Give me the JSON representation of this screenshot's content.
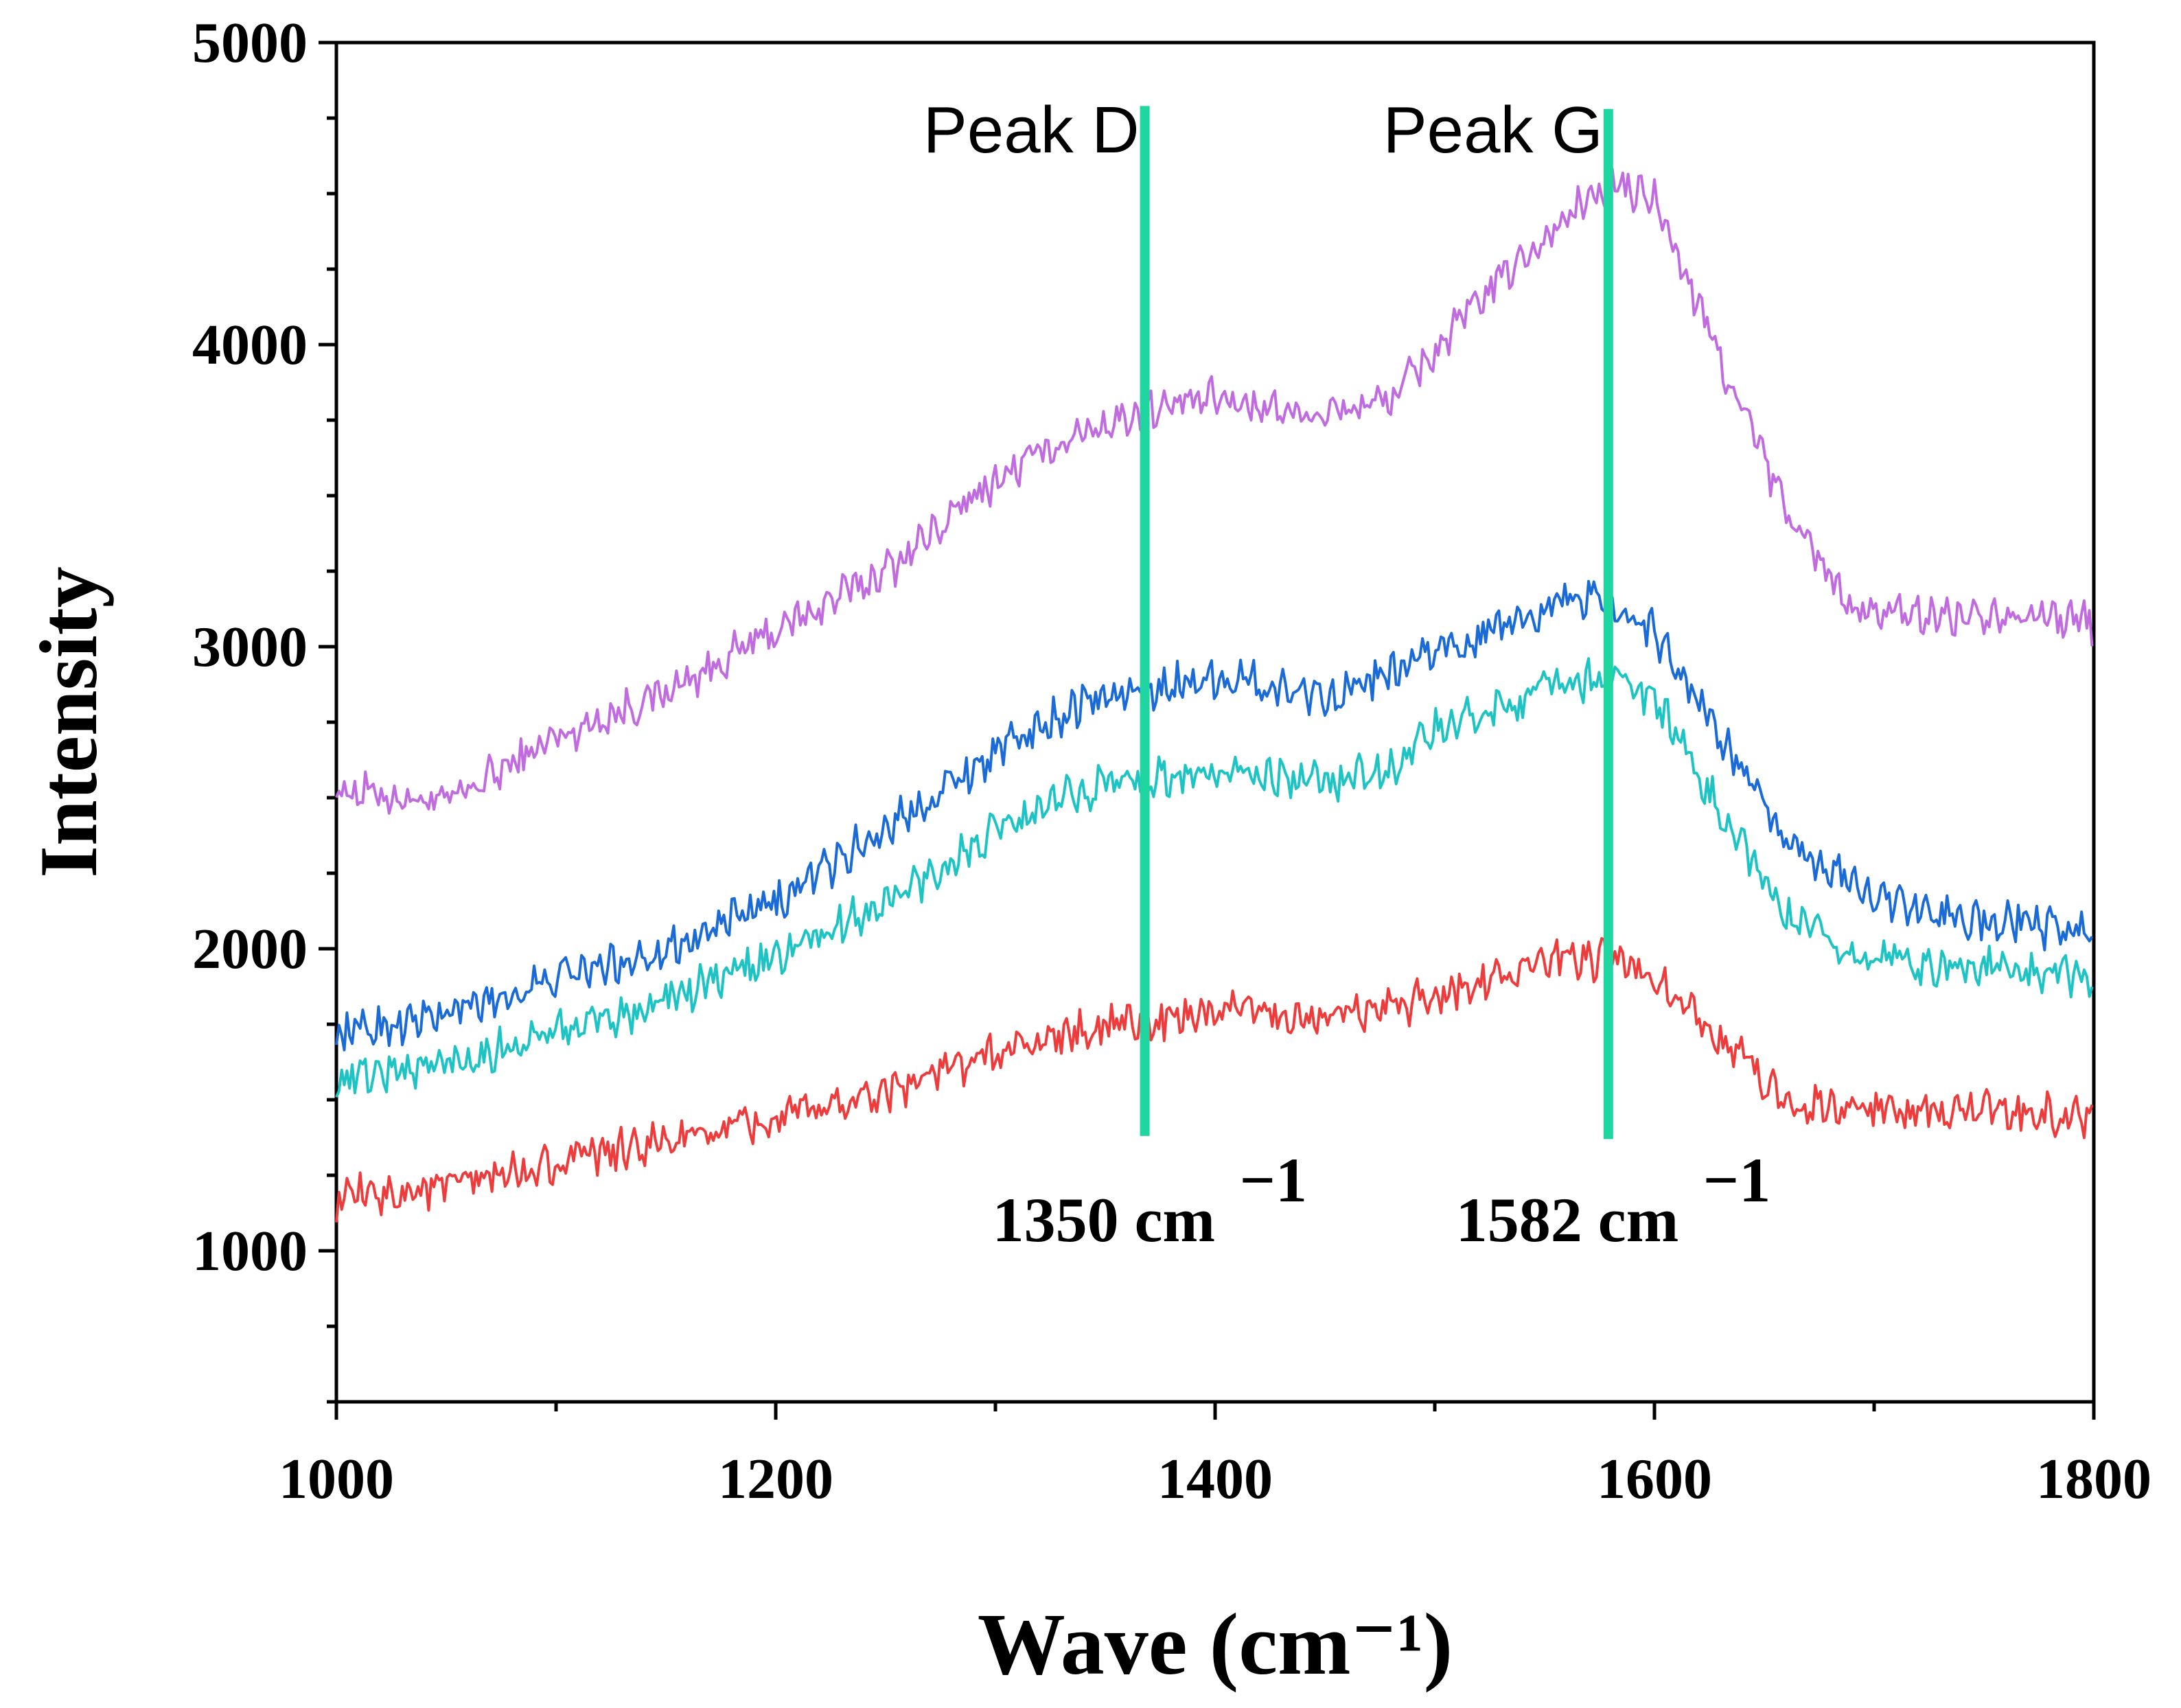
{
  "chart_data": {
    "type": "line",
    "title": "",
    "xlabel": "Wave (cm⁻¹)",
    "ylabel": "Intensity",
    "xlim": [
      1000,
      1800
    ],
    "ylim": [
      500,
      5000
    ],
    "x_ticks": [
      "1000",
      "1200",
      "1400",
      "1600",
      "1800"
    ],
    "y_ticks": [
      "1000",
      "2000",
      "3000",
      "4000",
      "5000"
    ],
    "grid": false,
    "legend": "none",
    "series": [
      {
        "name": "violet",
        "color": "#c06ce0",
        "x": [
          1000,
          1050,
          1100,
          1150,
          1200,
          1250,
          1300,
          1340,
          1370,
          1400,
          1450,
          1480,
          1500,
          1530,
          1560,
          1580,
          1600,
          1630,
          1660,
          1690,
          1720,
          1760,
          1800
        ],
        "y": [
          2530,
          2480,
          2700,
          2850,
          3050,
          3250,
          3550,
          3720,
          3780,
          3820,
          3770,
          3820,
          3980,
          4220,
          4420,
          4530,
          4480,
          3950,
          3450,
          3120,
          3100,
          3120,
          3080
        ]
      },
      {
        "name": "blue",
        "color": "#1a6ad8",
        "x": [
          1000,
          1050,
          1100,
          1150,
          1200,
          1250,
          1300,
          1340,
          1370,
          1400,
          1450,
          1480,
          1500,
          1530,
          1560,
          1580,
          1600,
          1630,
          1660,
          1690,
          1720,
          1760,
          1800
        ],
        "y": [
          1720,
          1780,
          1900,
          2000,
          2150,
          2400,
          2650,
          2820,
          2860,
          2900,
          2840,
          2900,
          2990,
          3060,
          3170,
          3150,
          3050,
          2700,
          2350,
          2220,
          2120,
          2090,
          2050
        ]
      },
      {
        "name": "cyan",
        "color": "#1ec4c4",
        "x": [
          1000,
          1050,
          1100,
          1150,
          1200,
          1250,
          1300,
          1340,
          1370,
          1400,
          1450,
          1480,
          1500,
          1530,
          1560,
          1580,
          1600,
          1630,
          1660,
          1690,
          1720,
          1760,
          1800
        ],
        "y": [
          1570,
          1620,
          1720,
          1830,
          1970,
          2150,
          2380,
          2530,
          2570,
          2580,
          2550,
          2600,
          2720,
          2800,
          2880,
          2900,
          2830,
          2450,
          2100,
          1980,
          1950,
          1930,
          1910
        ]
      },
      {
        "name": "red",
        "color": "#ee3b3b",
        "x": [
          1000,
          1050,
          1100,
          1150,
          1200,
          1250,
          1300,
          1340,
          1370,
          1400,
          1450,
          1480,
          1500,
          1530,
          1560,
          1580,
          1600,
          1630,
          1660,
          1690,
          1720,
          1760,
          1800
        ],
        "y": [
          1170,
          1210,
          1290,
          1360,
          1430,
          1530,
          1650,
          1730,
          1760,
          1790,
          1770,
          1800,
          1850,
          1920,
          1960,
          1960,
          1920,
          1700,
          1500,
          1470,
          1460,
          1460,
          1440
        ]
      }
    ],
    "annotations": [
      {
        "name": "Peak D",
        "label": "Peak D",
        "value_text": "1350 cm",
        "superscript": "−1",
        "x": 1368,
        "line_top": 4790,
        "line_bottom": 1380,
        "color": "#1fd6a0"
      },
      {
        "name": "Peak G",
        "label": "Peak G",
        "value_text": "1582 cm",
        "superscript": "−1",
        "x": 1579,
        "line_top": 4780,
        "line_bottom": 1370,
        "color": "#1fd6a0"
      }
    ]
  }
}
